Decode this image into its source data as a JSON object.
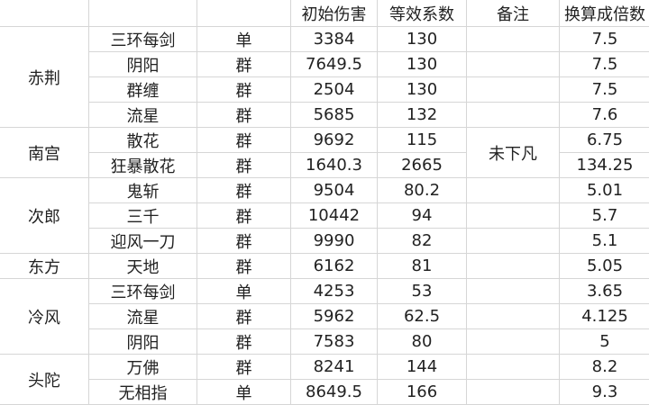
{
  "headers": [
    "",
    "",
    "",
    "初始伤害",
    "等效系数",
    "备注",
    "换算成倍数"
  ],
  "note": "未下凡",
  "groups": [
    {
      "name": "赤荆",
      "rows": [
        {
          "skill": "三环每剑",
          "type": "单",
          "damage": "3384",
          "coef": "130",
          "mult": "7.5"
        },
        {
          "skill": "阴阳",
          "type": "群",
          "damage": "7649.5",
          "coef": "130",
          "mult": "7.5"
        },
        {
          "skill": "群缠",
          "type": "群",
          "damage": "2504",
          "coef": "130",
          "mult": "7.5"
        },
        {
          "skill": "流星",
          "type": "群",
          "damage": "5685",
          "coef": "132",
          "mult": "7.6"
        }
      ]
    },
    {
      "name": "南宫",
      "rows": [
        {
          "skill": "散花",
          "type": "群",
          "damage": "9692",
          "coef": "115",
          "mult": "6.75"
        },
        {
          "skill": "狂暴散花",
          "type": "群",
          "damage": "1640.3",
          "coef": "2665",
          "mult": "134.25"
        }
      ]
    },
    {
      "name": "次郎",
      "rows": [
        {
          "skill": "鬼斩",
          "type": "群",
          "damage": "9504",
          "coef": "80.2",
          "mult": "5.01"
        },
        {
          "skill": "三千",
          "type": "群",
          "damage": "10442",
          "coef": "94",
          "mult": "5.7"
        },
        {
          "skill": "迎风一刀",
          "type": "群",
          "damage": "9990",
          "coef": "82",
          "mult": "5.1"
        }
      ]
    },
    {
      "name": "东方",
      "rows": [
        {
          "skill": "天地",
          "type": "群",
          "damage": "6162",
          "coef": "81",
          "mult": "5.05"
        }
      ]
    },
    {
      "name": "冷风",
      "rows": [
        {
          "skill": "三环每剑",
          "type": "单",
          "damage": "4253",
          "coef": "53",
          "mult": "3.65"
        },
        {
          "skill": "流星",
          "type": "群",
          "damage": "5962",
          "coef": "62.5",
          "mult": "4.125"
        },
        {
          "skill": "阴阳",
          "type": "群",
          "damage": "7583",
          "coef": "80",
          "mult": "5"
        }
      ]
    },
    {
      "name": "头陀",
      "rows": [
        {
          "skill": "万佛",
          "type": "群",
          "damage": "8241",
          "coef": "144",
          "mult": "8.2"
        },
        {
          "skill": "无相指",
          "type": "单",
          "damage": "8649.5",
          "coef": "166",
          "mult": "9.3"
        }
      ]
    }
  ]
}
